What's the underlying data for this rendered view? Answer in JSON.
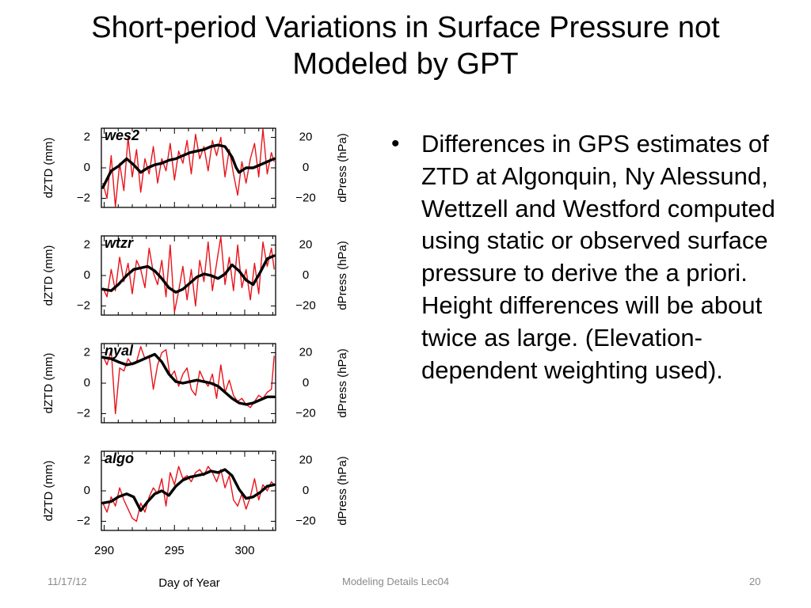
{
  "slide": {
    "title_line1": "Short-period Variations in Surface Pressure not",
    "title_line2": "Modeled by GPT",
    "bullet_text": "Differences in GPS estimates of ZTD at Algonquin, Ny Alessund, Wettzell and Westford computed using static or observed surface pressure to derive the a priori.  Height differences will be about twice as large.  (Elevation-dependent weighting used).",
    "bullet_glyph": "•"
  },
  "footer": {
    "date": "11/17/12",
    "center": "Modeling Details Lec04",
    "page": "20"
  },
  "colors": {
    "pressure_line": "#e8141b",
    "ztd_line": "#000000"
  },
  "chart_data": {
    "type": "line",
    "xlabel": "Day of Year",
    "xlim": [
      289.8,
      302.2
    ],
    "x_ticks": [
      290,
      295,
      300
    ],
    "left_axis": {
      "label": "dZTD (mm)",
      "ylim": [
        -2.6,
        2.6
      ],
      "ticks": [
        2,
        0,
        -2
      ],
      "tick_labels": [
        "2",
        "0",
        "−2"
      ]
    },
    "right_axis": {
      "label": "dPress (hPa)",
      "ylim": [
        -26,
        26
      ],
      "ticks": [
        20,
        0,
        -20
      ],
      "tick_labels": [
        "20",
        "0",
        "−20"
      ]
    },
    "panels": [
      {
        "station": "wes2",
        "ztd": {
          "x": [
            289.9,
            290.5,
            291,
            291.6,
            292.1,
            292.6,
            293.1,
            293.6,
            294.1,
            294.6,
            295.1,
            295.6,
            296.1,
            296.6,
            297.1,
            297.6,
            298.1,
            298.6,
            299.1,
            299.4,
            299.6,
            300.1,
            300.6,
            301.1,
            301.6,
            302.1
          ],
          "y": [
            -1.3,
            -0.2,
            0.1,
            0.6,
            0.2,
            -0.3,
            0,
            0.2,
            0.3,
            0.5,
            0.6,
            0.8,
            1,
            1.1,
            1.2,
            1.4,
            1.5,
            1.4,
            0.7,
            0,
            -0.3,
            0,
            0,
            0.2,
            0.4,
            0.6
          ]
        },
        "pressure": {
          "x": [
            289.9,
            290.2,
            290.5,
            290.8,
            291.1,
            291.4,
            291.7,
            292,
            292.3,
            292.6,
            292.9,
            293.2,
            293.5,
            293.8,
            294.1,
            294.4,
            294.7,
            295,
            295.3,
            295.6,
            295.9,
            296.2,
            296.5,
            296.8,
            297.1,
            297.4,
            297.7,
            298,
            298.3,
            298.6,
            298.9,
            299.2,
            299.5,
            299.8,
            300.1,
            300.4,
            300.7,
            301,
            301.3,
            301.6,
            301.9,
            302.1
          ],
          "y": [
            -10,
            -20,
            8,
            -26,
            3,
            -15,
            20,
            -6,
            12,
            -16,
            6,
            -4,
            14,
            -10,
            6,
            -2,
            16,
            -8,
            11,
            3,
            18,
            -4,
            22,
            6,
            14,
            -2,
            18,
            8,
            20,
            -6,
            12,
            -4,
            -18,
            4,
            -10,
            6,
            16,
            -6,
            26,
            -4,
            10,
            4
          ]
        }
      },
      {
        "station": "wtzr",
        "ztd": {
          "x": [
            289.9,
            290.5,
            291,
            291.6,
            292.1,
            292.6,
            293.1,
            293.6,
            294.1,
            294.6,
            295.1,
            295.6,
            296.1,
            296.6,
            297.1,
            297.6,
            298.1,
            298.6,
            299.1,
            299.6,
            300.1,
            300.6,
            301.1,
            301.6,
            302.1
          ],
          "y": [
            -0.9,
            -1,
            -0.6,
            0,
            0.4,
            0.5,
            0.6,
            0.3,
            -0.2,
            -0.8,
            -1.1,
            -0.9,
            -0.5,
            -0.1,
            0.1,
            0,
            -0.2,
            0.1,
            0.7,
            0.3,
            -0.3,
            -0.6,
            0.2,
            1.1,
            1.3
          ]
        },
        "pressure": {
          "x": [
            289.9,
            290.2,
            290.5,
            290.8,
            291.1,
            291.4,
            291.7,
            292,
            292.3,
            292.6,
            292.9,
            293.2,
            293.5,
            293.8,
            294.1,
            294.4,
            294.7,
            295,
            295.3,
            295.6,
            295.9,
            296.2,
            296.5,
            296.8,
            297.1,
            297.4,
            297.7,
            298,
            298.3,
            298.6,
            298.9,
            299.2,
            299.5,
            299.8,
            300.1,
            300.4,
            300.7,
            301,
            301.3,
            301.6,
            301.9,
            302.1
          ],
          "y": [
            -8,
            -14,
            4,
            -10,
            12,
            -4,
            8,
            -12,
            10,
            4,
            -8,
            18,
            2,
            -6,
            10,
            -14,
            20,
            -24,
            -10,
            6,
            -16,
            4,
            -20,
            10,
            -4,
            22,
            -10,
            8,
            26,
            -6,
            12,
            -10,
            20,
            -8,
            4,
            -16,
            8,
            -12,
            22,
            6,
            18,
            4
          ]
        }
      },
      {
        "station": "nyal",
        "ztd": {
          "x": [
            289.9,
            290.5,
            291,
            291.6,
            292.1,
            292.6,
            293.1,
            293.6,
            294.1,
            294.6,
            295.1,
            295.6,
            296.1,
            296.6,
            297.1,
            297.6,
            298.1,
            298.6,
            299.1,
            299.6,
            300.1,
            300.6,
            301.1,
            301.6,
            302.1
          ],
          "y": [
            1.7,
            1.6,
            1.4,
            1.2,
            1.3,
            1.5,
            1.7,
            1.9,
            1.4,
            0.6,
            0.1,
            0,
            0.1,
            0.2,
            0.1,
            0,
            -0.2,
            -0.6,
            -1,
            -1.3,
            -1.4,
            -1.3,
            -1.1,
            -0.9,
            -0.9
          ]
        },
        "pressure": {
          "x": [
            289.9,
            290.2,
            290.5,
            290.8,
            291.1,
            291.4,
            291.7,
            292,
            292.3,
            292.6,
            292.9,
            293.2,
            293.5,
            293.8,
            294.1,
            294.4,
            294.7,
            295,
            295.3,
            295.6,
            295.9,
            296.2,
            296.5,
            296.8,
            297.1,
            297.4,
            297.7,
            298,
            298.3,
            298.6,
            298.9,
            299.2,
            299.5,
            299.8,
            300.1,
            300.4,
            300.7,
            301,
            301.3,
            301.6,
            301.9,
            302.1
          ],
          "y": [
            18,
            12,
            22,
            -20,
            10,
            8,
            16,
            12,
            14,
            24,
            16,
            18,
            -4,
            12,
            20,
            22,
            4,
            8,
            -2,
            6,
            10,
            -4,
            -8,
            8,
            2,
            -2,
            6,
            -10,
            12,
            -6,
            2,
            -8,
            -12,
            -10,
            -14,
            -16,
            -12,
            -8,
            -10,
            -6,
            -4,
            18
          ]
        }
      },
      {
        "station": "algo",
        "ztd": {
          "x": [
            289.9,
            290.5,
            291,
            291.6,
            292.1,
            292.6,
            293.1,
            293.6,
            294.1,
            294.6,
            295.1,
            295.6,
            296.1,
            296.6,
            297.1,
            297.6,
            298.1,
            298.6,
            299.1,
            299.6,
            300.1,
            300.6,
            301.1,
            301.6,
            302.1
          ],
          "y": [
            -0.8,
            -0.7,
            -0.4,
            -0.2,
            -0.4,
            -1.3,
            -0.7,
            -0.2,
            0,
            -0.3,
            0.3,
            0.7,
            0.9,
            1,
            1.1,
            1.3,
            1.2,
            1.4,
            1,
            0.1,
            -0.5,
            -0.4,
            -0.1,
            0.3,
            0.4
          ]
        },
        "pressure": {
          "x": [
            289.9,
            290.2,
            290.5,
            290.8,
            291.1,
            291.4,
            291.7,
            292,
            292.3,
            292.6,
            292.9,
            293.2,
            293.5,
            293.8,
            294.1,
            294.4,
            294.7,
            295,
            295.3,
            295.6,
            295.9,
            296.2,
            296.5,
            296.8,
            297.1,
            297.4,
            297.7,
            298,
            298.3,
            298.6,
            298.9,
            299.2,
            299.5,
            299.8,
            300.1,
            300.4,
            300.7,
            301,
            301.3,
            301.6,
            301.9,
            302.1
          ],
          "y": [
            -8,
            -14,
            -4,
            -10,
            2,
            -6,
            -12,
            -18,
            -20,
            -8,
            -14,
            -4,
            2,
            -2,
            8,
            -10,
            12,
            4,
            16,
            8,
            10,
            6,
            12,
            14,
            10,
            16,
            12,
            6,
            14,
            2,
            10,
            -6,
            -10,
            -2,
            -12,
            -4,
            8,
            -6,
            4,
            0,
            6,
            4
          ]
        }
      }
    ]
  }
}
